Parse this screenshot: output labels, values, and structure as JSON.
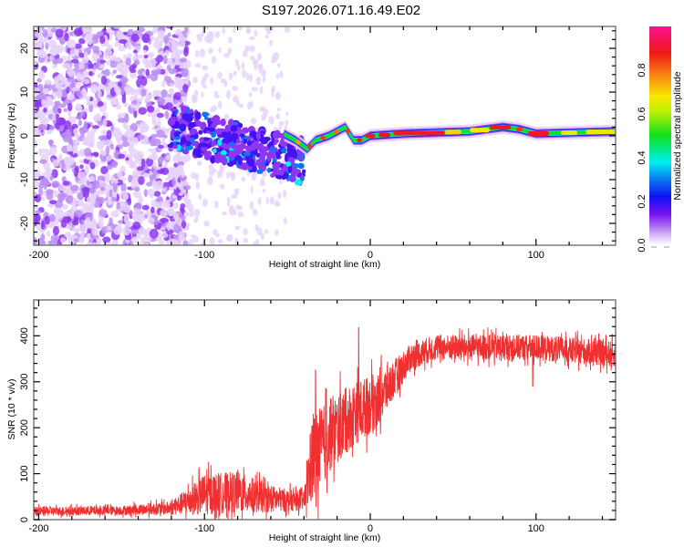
{
  "chart_data": [
    {
      "type": "heatmap",
      "title": "S197.2026.071.16.49.E02",
      "xlabel": "Height of straight line (km)",
      "ylabel": "Frequency (Hz)",
      "xlim": [
        -203,
        148
      ],
      "ylim": [
        -25,
        25
      ],
      "xticks": [
        -200,
        -100,
        0,
        100
      ],
      "yticks": [
        -20,
        -10,
        0,
        10,
        20
      ],
      "colorbar": {
        "label": "Normalized spectral amplitude",
        "range": [
          0,
          1
        ],
        "ticks": [
          0.0,
          0.2,
          0.4,
          0.6,
          0.8
        ],
        "colormap": "rainbow (white-violet-blue-cyan-green-yellow-red-magenta)"
      },
      "features": [
        {
          "name": "noise",
          "x_range": [
            -203,
            -120
          ],
          "freq_spread_hz": 25,
          "amplitude": 0.05
        },
        {
          "name": "emerging-signal",
          "x_range": [
            -120,
            -50
          ],
          "freq_center_start_hz": 2,
          "freq_center_end_hz": -5,
          "amplitude": 0.25
        },
        {
          "name": "tracked-signal",
          "points": [
            [
              -50,
              0
            ],
            [
              -45,
              -1
            ],
            [
              -38,
              -3
            ],
            [
              -33,
              -1
            ],
            [
              -25,
              0
            ],
            [
              -15,
              2
            ],
            [
              -10,
              -1
            ],
            [
              -5,
              -1
            ],
            [
              0,
              0
            ],
            [
              20,
              0.5
            ],
            [
              60,
              1
            ],
            [
              80,
              2
            ],
            [
              90,
              1.5
            ],
            [
              100,
              0.5
            ],
            [
              148,
              1
            ]
          ],
          "amplitude": 0.85
        }
      ],
      "grid": false
    },
    {
      "type": "line",
      "xlabel": "Height of straight line (km)",
      "ylabel": "SNR (10 * v/v)",
      "xlim": [
        -203,
        148
      ],
      "ylim": [
        0,
        478
      ],
      "xticks": [
        -200,
        -100,
        0,
        100
      ],
      "yticks": [
        0,
        100,
        200,
        300,
        400
      ],
      "color": "#f03030",
      "series": [
        {
          "name": "SNR",
          "envelope": [
            {
              "x": -203,
              "mean": 18,
              "spread": 10
            },
            {
              "x": -150,
              "mean": 20,
              "spread": 10
            },
            {
              "x": -120,
              "mean": 25,
              "spread": 15
            },
            {
              "x": -100,
              "mean": 55,
              "spread": 45
            },
            {
              "x": -80,
              "mean": 60,
              "spread": 45
            },
            {
              "x": -60,
              "mean": 45,
              "spread": 30
            },
            {
              "x": -40,
              "mean": 40,
              "spread": 20
            },
            {
              "x": -35,
              "mean": 130,
              "spread": 100
            },
            {
              "x": -25,
              "mean": 180,
              "spread": 80
            },
            {
              "x": -10,
              "mean": 230,
              "spread": 70
            },
            {
              "x": 5,
              "mean": 260,
              "spread": 60
            },
            {
              "x": 15,
              "mean": 310,
              "spread": 40
            },
            {
              "x": 25,
              "mean": 355,
              "spread": 30
            },
            {
              "x": 40,
              "mean": 375,
              "spread": 28
            },
            {
              "x": 100,
              "mean": 375,
              "spread": 28
            },
            {
              "x": 148,
              "mean": 360,
              "spread": 28
            }
          ],
          "spikes": [
            {
              "x": -33,
              "y": 325
            },
            {
              "x": -7,
              "y": 418
            },
            {
              "x": 98,
              "y": 478
            },
            {
              "x": 98,
              "y": 290
            }
          ]
        }
      ],
      "grid": false
    }
  ]
}
